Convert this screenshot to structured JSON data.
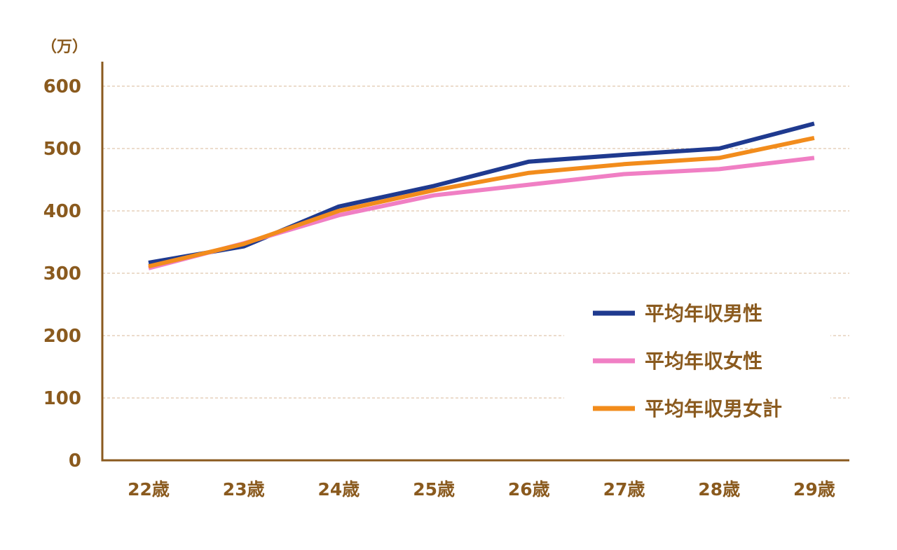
{
  "chart_data": {
    "type": "line",
    "unit_label": "（万）",
    "categories": [
      "22歳",
      "23歳",
      "24歳",
      "25歳",
      "26歳",
      "27歳",
      "28歳",
      "29歳"
    ],
    "series": [
      {
        "name": "平均年収男性",
        "color": "#1f3a8f",
        "values": [
          317,
          343,
          407,
          440,
          479,
          490,
          500,
          540
        ]
      },
      {
        "name": "平均年収女性",
        "color": "#f07fc4",
        "values": [
          308,
          348,
          393,
          425,
          442,
          459,
          467,
          485
        ]
      },
      {
        "name": "平均年収男女計",
        "color": "#f28c1c",
        "values": [
          311,
          347,
          400,
          433,
          461,
          475,
          485,
          517
        ]
      }
    ],
    "yticks": [
      0,
      100,
      200,
      300,
      400,
      500,
      600
    ],
    "ylim": [
      0,
      640
    ],
    "grid": true,
    "legend_position": "right",
    "axis_color": "#8a5a1e",
    "grid_color": "#d9b89a"
  }
}
